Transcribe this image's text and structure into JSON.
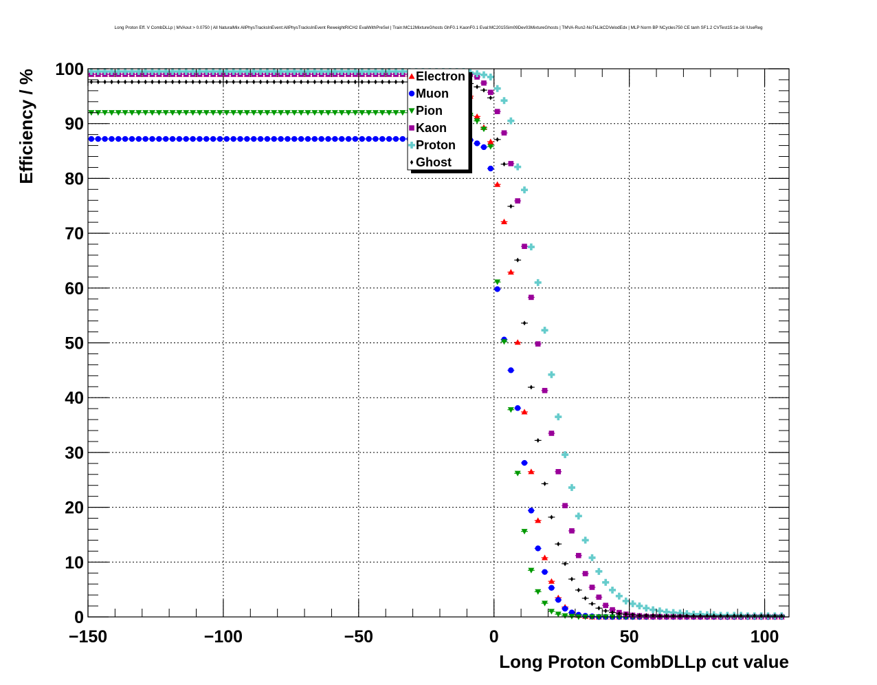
{
  "chart_data": {
    "type": "scatter",
    "title": "Long Proton Eff. V CombDLLp | MVAout > 0.0750 | All NaturalMix AllPhysTracksInEvent:AllPhysTracksInEvent ReweightRICH2 EvalWithPreSel | Train:MC12MixtureGhosts GhF0.1 KaonF0.1 Eval:MC2015Sim09Dev03MixtureGhosts | TMVA-Run2-NoTkLikCDVelodEdx | MLP Norm BP NCycles750 CE tanh SF1.2 CVTest15:1e-16 !UseReg",
    "xlabel": "Long Proton CombDLLp cut value",
    "ylabel": "Efficiency / %",
    "xlim": [
      -150,
      109
    ],
    "ylim": [
      0,
      100
    ],
    "xticks": [
      -150,
      -100,
      -50,
      0,
      50,
      100
    ],
    "xtick_labels": [
      "−150",
      "−100",
      "−50",
      "0",
      "50",
      "100"
    ],
    "yticks": [
      0,
      10,
      20,
      30,
      40,
      50,
      60,
      70,
      80,
      90,
      100
    ],
    "ytick_labels": [
      "0",
      "10",
      "20",
      "30",
      "40",
      "50",
      "60",
      "70",
      "80",
      "90",
      "100"
    ],
    "grid": true,
    "legend_placement": "top-center",
    "x_start": -148.75,
    "x_step": 2.5,
    "n_points": 103,
    "transition_start_x": -8.75,
    "series": [
      {
        "name": "Electron",
        "color": "#ff0000",
        "marker": "triangle-up",
        "plateau": 99.0,
        "values": [
          95.0,
          91.3,
          89.3,
          86.7,
          78.9,
          72.1,
          62.9,
          50.1,
          37.4,
          26.5,
          17.6,
          10.8,
          6.5,
          3.5,
          1.8,
          0.8,
          0.3,
          0.1
        ],
        "tail": 0.0
      },
      {
        "name": "Muon",
        "color": "#0000ff",
        "marker": "circle",
        "plateau": 87.2,
        "values": [
          87.0,
          86.4,
          85.7,
          81.8,
          59.8,
          50.6,
          45.0,
          38.1,
          28.1,
          19.4,
          12.5,
          8.2,
          5.3,
          3.1,
          1.5,
          0.8,
          0.4,
          0.2,
          0.1
        ],
        "tail": 0.0
      },
      {
        "name": "Pion",
        "color": "#009900",
        "marker": "triangle-down",
        "plateau": 92.0,
        "values": [
          91.5,
          90.5,
          89.0,
          85.8,
          61.1,
          50.2,
          37.8,
          26.2,
          15.6,
          8.5,
          4.6,
          2.5,
          1.0,
          0.5,
          0.2,
          0.1
        ],
        "tail": 0.0
      },
      {
        "name": "Kaon",
        "color": "#990099",
        "marker": "square",
        "plateau": 99.0,
        "values": [
          99.0,
          98.5,
          97.4,
          95.7,
          92.2,
          88.3,
          82.7,
          75.9,
          67.6,
          58.3,
          49.8,
          41.3,
          33.5,
          26.5,
          20.3,
          15.7,
          11.2,
          7.9,
          5.4,
          3.6,
          2.1,
          1.3,
          0.8,
          0.5,
          0.3,
          0.2,
          0.1
        ],
        "tail": 0.05
      },
      {
        "name": "Proton",
        "color": "#66cccc",
        "marker": "cross",
        "plateau": 99.5,
        "values": [
          99.3,
          99.1,
          98.9,
          98.5,
          96.4,
          94.2,
          90.5,
          82.1,
          77.9,
          67.5,
          61.0,
          52.3,
          44.2,
          36.5,
          29.6,
          23.6,
          18.4,
          14.0,
          10.8,
          8.3,
          6.3,
          4.9,
          3.8,
          2.9,
          2.4,
          2.0,
          1.6,
          1.3,
          1.1,
          0.9,
          0.8,
          0.7,
          0.6,
          0.5,
          0.5,
          0.4,
          0.4,
          0.3,
          0.3,
          0.3,
          0.3
        ],
        "tail": 0.2
      },
      {
        "name": "Ghost",
        "color": "#000000",
        "marker": "diamond",
        "plateau": 97.6,
        "values": [
          97.3,
          96.7,
          96.1,
          94.7,
          87.1,
          82.6,
          74.9,
          65.1,
          53.6,
          41.9,
          32.2,
          24.3,
          18.2,
          13.3,
          9.7,
          6.9,
          4.9,
          3.4,
          2.4,
          1.6,
          1.1,
          0.8,
          0.6,
          0.5,
          0.4,
          0.3,
          0.3,
          0.3
        ],
        "tail": 0.2
      }
    ]
  }
}
